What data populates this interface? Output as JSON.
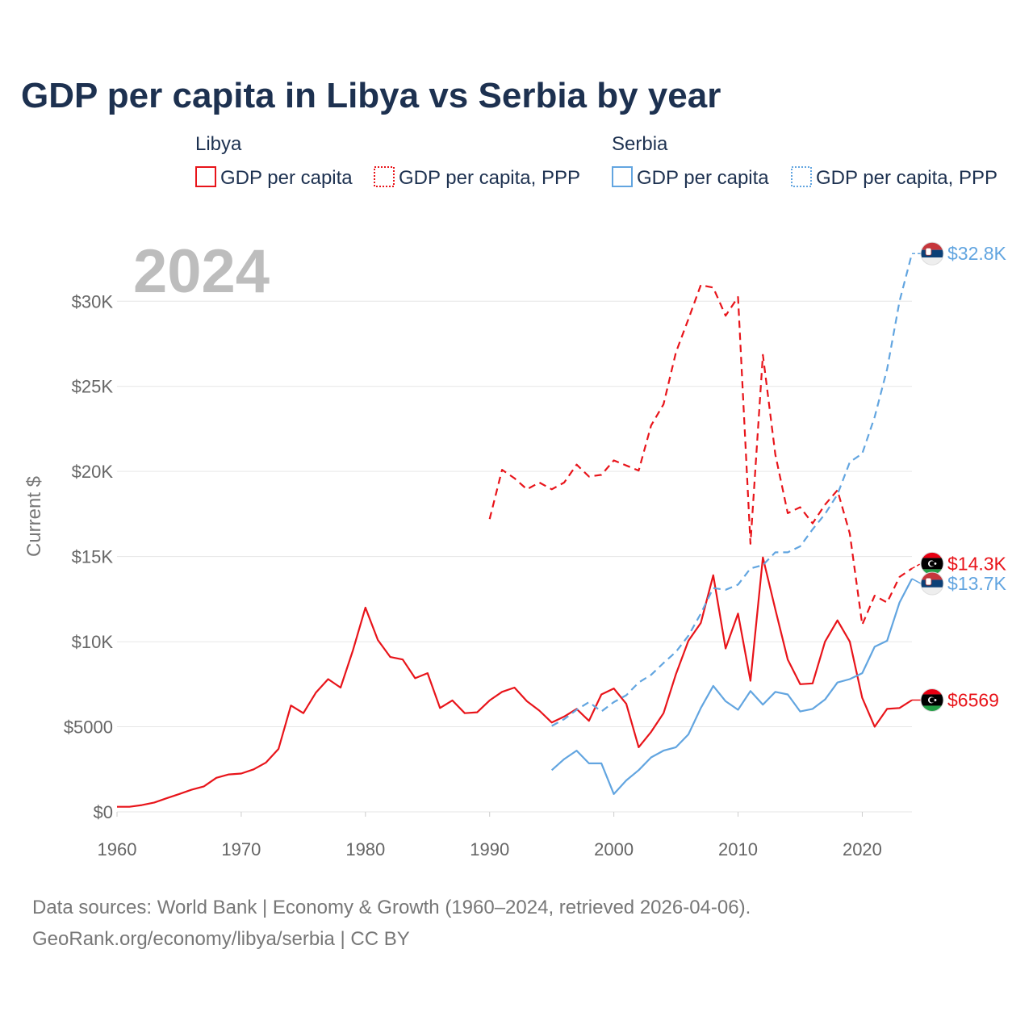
{
  "title": "GDP per capita in Libya vs Serbia by year",
  "year_label": "2024",
  "legend": {
    "groups": [
      {
        "name": "Libya",
        "items": [
          {
            "label": "GDP per capita"
          },
          {
            "label": "GDP per capita, PPP"
          }
        ]
      },
      {
        "name": "Serbia",
        "items": [
          {
            "label": "GDP per capita"
          },
          {
            "label": "GDP per capita, PPP"
          }
        ]
      }
    ]
  },
  "colors": {
    "libya": "#e8141a",
    "serbia": "#62a5e0"
  },
  "source_line1": "Data sources: World Bank | Economy & Growth (1960–2024, retrieved 2026-04-06).",
  "source_line2": "GeoRank.org/economy/libya/serbia | CC BY",
  "chart_data": {
    "type": "line",
    "title": "GDP per capita in Libya vs Serbia by year",
    "xlabel": "",
    "ylabel": "Current $",
    "xlim": [
      1960,
      2024
    ],
    "ylim": [
      0,
      33000
    ],
    "x_ticks": [
      1960,
      1970,
      1980,
      1990,
      2000,
      2010,
      2020
    ],
    "x_tick_labels": [
      "1960",
      "1970",
      "1980",
      "1990",
      "2000",
      "2010",
      "2020"
    ],
    "y_ticks": [
      0,
      5000,
      10000,
      15000,
      20000,
      25000,
      30000
    ],
    "y_tick_labels": [
      "$0",
      "$5000",
      "$10K",
      "$15K",
      "$20K",
      "$25K",
      "$30K"
    ],
    "grid": true,
    "series": [
      {
        "name": "Libya GDP per capita",
        "country": "libya",
        "dashed": false,
        "end_label": "$6569",
        "points": [
          [
            1960,
            300
          ],
          [
            1961,
            300
          ],
          [
            1962,
            400
          ],
          [
            1963,
            550
          ],
          [
            1964,
            800
          ],
          [
            1965,
            1050
          ],
          [
            1966,
            1300
          ],
          [
            1967,
            1500
          ],
          [
            1968,
            2000
          ],
          [
            1969,
            2200
          ],
          [
            1970,
            2250
          ],
          [
            1971,
            2500
          ],
          [
            1972,
            2900
          ],
          [
            1973,
            3700
          ],
          [
            1974,
            6250
          ],
          [
            1975,
            5800
          ],
          [
            1976,
            7000
          ],
          [
            1977,
            7800
          ],
          [
            1978,
            7300
          ],
          [
            1979,
            9500
          ],
          [
            1980,
            12000
          ],
          [
            1981,
            10100
          ],
          [
            1982,
            9100
          ],
          [
            1983,
            8950
          ],
          [
            1984,
            7850
          ],
          [
            1985,
            8150
          ],
          [
            1986,
            6100
          ],
          [
            1987,
            6550
          ],
          [
            1988,
            5800
          ],
          [
            1989,
            5850
          ],
          [
            1990,
            6550
          ],
          [
            1991,
            7050
          ],
          [
            1992,
            7300
          ],
          [
            1993,
            6500
          ],
          [
            1994,
            5950
          ],
          [
            1995,
            5250
          ],
          [
            1996,
            5600
          ],
          [
            1997,
            6050
          ],
          [
            1998,
            5350
          ],
          [
            1999,
            6900
          ],
          [
            2000,
            7250
          ],
          [
            2001,
            6350
          ],
          [
            2002,
            3800
          ],
          [
            2003,
            4700
          ],
          [
            2004,
            5800
          ],
          [
            2005,
            8100
          ],
          [
            2006,
            10050
          ],
          [
            2007,
            11100
          ],
          [
            2008,
            13900
          ],
          [
            2009,
            9600
          ],
          [
            2010,
            11650
          ],
          [
            2011,
            7700
          ],
          [
            2012,
            14950
          ],
          [
            2013,
            11900
          ],
          [
            2014,
            8950
          ],
          [
            2015,
            7500
          ],
          [
            2016,
            7550
          ],
          [
            2017,
            10000
          ],
          [
            2018,
            11250
          ],
          [
            2019,
            10000
          ],
          [
            2020,
            6700
          ],
          [
            2021,
            5000
          ],
          [
            2022,
            6050
          ],
          [
            2023,
            6100
          ],
          [
            2024,
            6569
          ]
        ]
      },
      {
        "name": "Libya GDP per capita, PPP",
        "country": "libya",
        "dashed": true,
        "end_label": "$14.3K",
        "points": [
          [
            1990,
            17200
          ],
          [
            1991,
            20100
          ],
          [
            1992,
            19600
          ],
          [
            1993,
            18950
          ],
          [
            1994,
            19350
          ],
          [
            1995,
            18950
          ],
          [
            1996,
            19350
          ],
          [
            1997,
            20400
          ],
          [
            1998,
            19700
          ],
          [
            1999,
            19800
          ],
          [
            2000,
            20650
          ],
          [
            2001,
            20350
          ],
          [
            2002,
            20050
          ],
          [
            2003,
            22700
          ],
          [
            2004,
            23950
          ],
          [
            2005,
            27000
          ],
          [
            2006,
            28950
          ],
          [
            2007,
            30950
          ],
          [
            2008,
            30800
          ],
          [
            2009,
            29150
          ],
          [
            2010,
            30250
          ],
          [
            2011,
            15750
          ],
          [
            2012,
            26850
          ],
          [
            2013,
            21000
          ],
          [
            2014,
            17550
          ],
          [
            2015,
            17900
          ],
          [
            2016,
            16950
          ],
          [
            2017,
            18050
          ],
          [
            2018,
            18900
          ],
          [
            2019,
            16350
          ],
          [
            2020,
            11000
          ],
          [
            2021,
            12700
          ],
          [
            2022,
            12300
          ],
          [
            2023,
            13800
          ],
          [
            2024,
            14300
          ]
        ]
      },
      {
        "name": "Serbia GDP per capita",
        "country": "serbia",
        "dashed": false,
        "end_label": "$13.7K",
        "points": [
          [
            1995,
            2450
          ],
          [
            1996,
            3100
          ],
          [
            1997,
            3600
          ],
          [
            1998,
            2850
          ],
          [
            1999,
            2850
          ],
          [
            2000,
            1050
          ],
          [
            2001,
            1850
          ],
          [
            2002,
            2450
          ],
          [
            2003,
            3200
          ],
          [
            2004,
            3600
          ],
          [
            2005,
            3800
          ],
          [
            2006,
            4550
          ],
          [
            2007,
            6100
          ],
          [
            2008,
            7400
          ],
          [
            2009,
            6500
          ],
          [
            2010,
            6000
          ],
          [
            2011,
            7100
          ],
          [
            2012,
            6300
          ],
          [
            2013,
            7050
          ],
          [
            2014,
            6900
          ],
          [
            2015,
            5900
          ],
          [
            2016,
            6050
          ],
          [
            2017,
            6600
          ],
          [
            2018,
            7600
          ],
          [
            2019,
            7800
          ],
          [
            2020,
            8150
          ],
          [
            2021,
            9700
          ],
          [
            2022,
            10050
          ],
          [
            2023,
            12300
          ],
          [
            2024,
            13700
          ]
        ]
      },
      {
        "name": "Serbia GDP per capita, PPP",
        "country": "serbia",
        "dashed": true,
        "end_label": "$32.8K",
        "points": [
          [
            1995,
            5050
          ],
          [
            1996,
            5450
          ],
          [
            1997,
            6000
          ],
          [
            1998,
            6450
          ],
          [
            1999,
            5900
          ],
          [
            2000,
            6450
          ],
          [
            2001,
            6850
          ],
          [
            2002,
            7600
          ],
          [
            2003,
            8050
          ],
          [
            2004,
            8750
          ],
          [
            2005,
            9400
          ],
          [
            2006,
            10350
          ],
          [
            2007,
            11650
          ],
          [
            2008,
            13150
          ],
          [
            2009,
            13050
          ],
          [
            2010,
            13350
          ],
          [
            2011,
            14300
          ],
          [
            2012,
            14500
          ],
          [
            2013,
            15250
          ],
          [
            2014,
            15250
          ],
          [
            2015,
            15600
          ],
          [
            2016,
            16600
          ],
          [
            2017,
            17500
          ],
          [
            2018,
            18650
          ],
          [
            2019,
            20550
          ],
          [
            2020,
            21050
          ],
          [
            2021,
            23200
          ],
          [
            2022,
            26000
          ],
          [
            2023,
            30000
          ],
          [
            2024,
            32800
          ]
        ]
      }
    ]
  }
}
